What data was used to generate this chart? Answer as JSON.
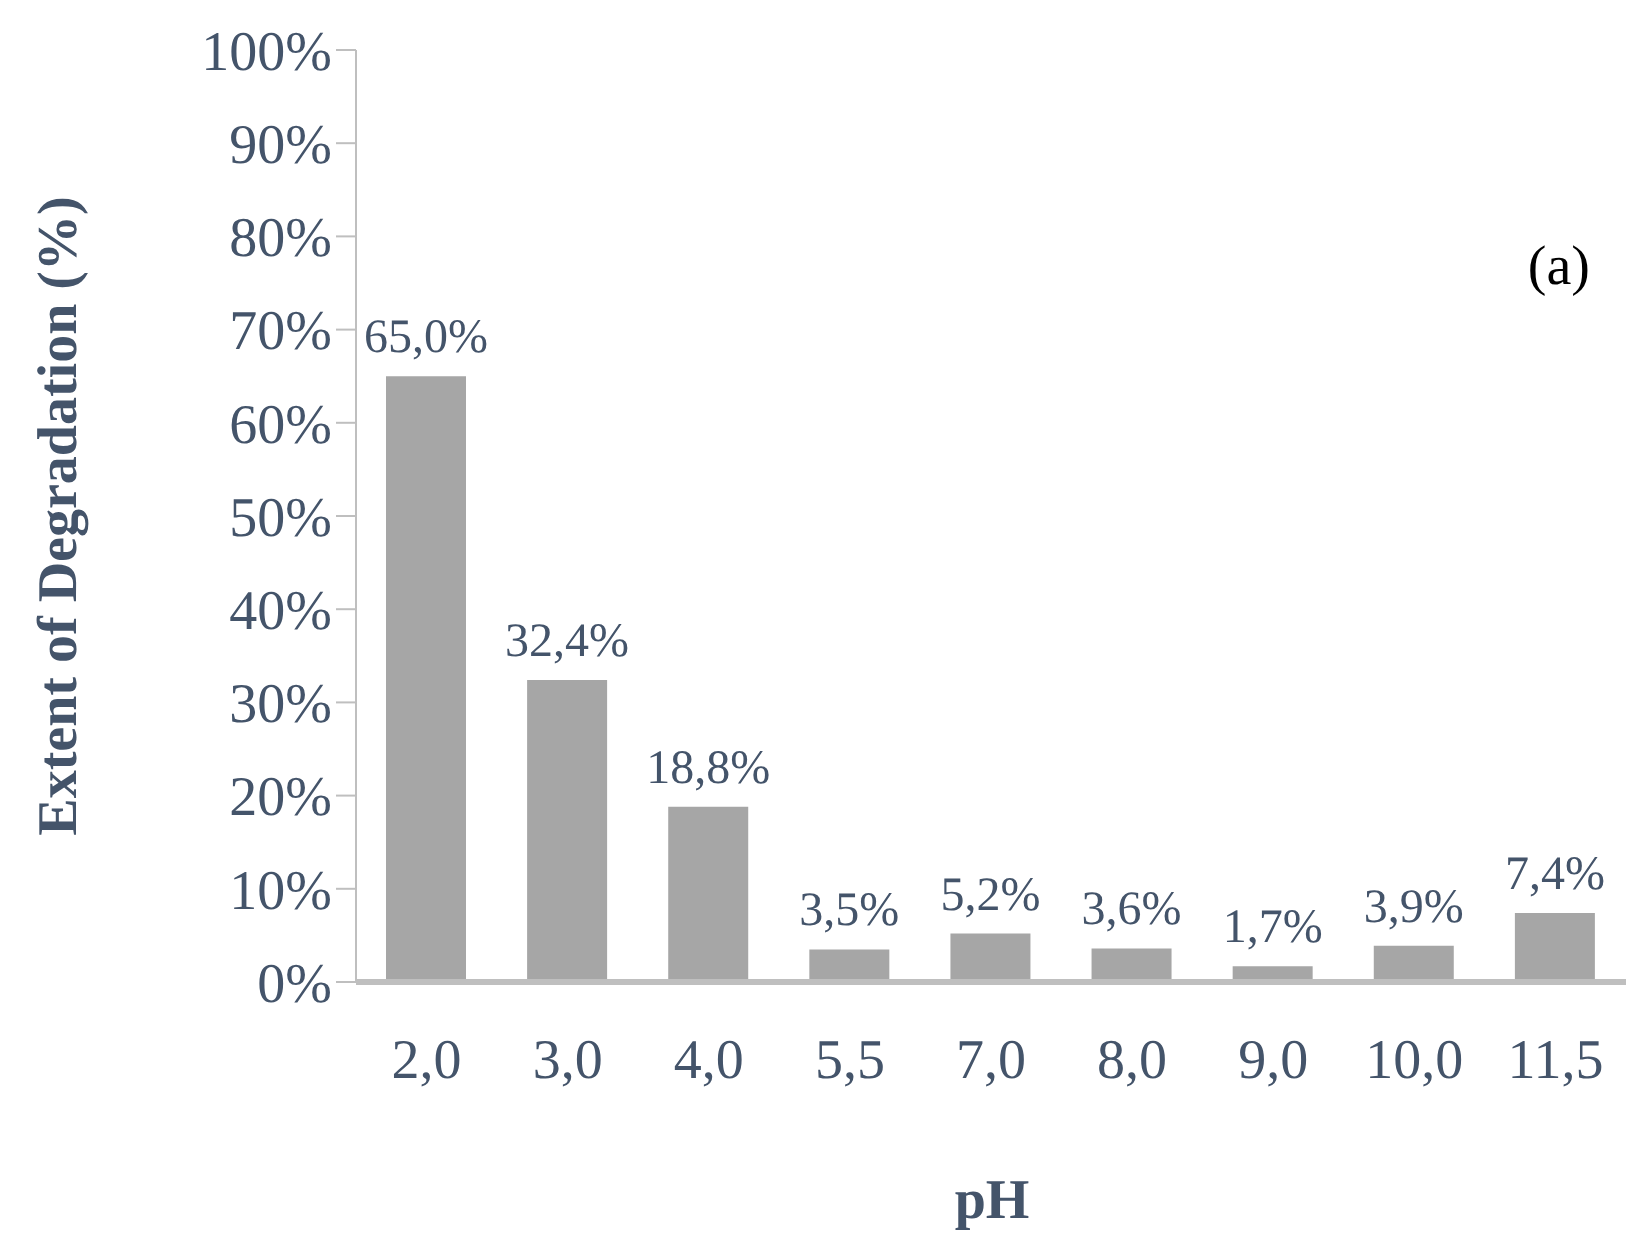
{
  "chart_data": {
    "type": "bar",
    "xlabel": "pH",
    "ylabel": "Extent of Degradation (%)",
    "annotations": [
      "(a)"
    ],
    "categories": [
      "2,0",
      "3,0",
      "4,0",
      "5,5",
      "7,0",
      "8,0",
      "9,0",
      "10,0",
      "11,5"
    ],
    "values": [
      65.0,
      32.4,
      18.8,
      3.5,
      5.2,
      3.6,
      1.7,
      3.9,
      7.4
    ],
    "value_labels": [
      "65,0%",
      "32,4%",
      "18,8%",
      "3,5%",
      "5,2%",
      "3,6%",
      "1,7%",
      "3,9%",
      "7,4%"
    ],
    "color": "#a6a6a6",
    "ylim": [
      0,
      100
    ],
    "yticks": [
      {
        "value": 0,
        "label": "0%"
      },
      {
        "value": 10,
        "label": "10%"
      },
      {
        "value": 20,
        "label": "20%"
      },
      {
        "value": 30,
        "label": "30%"
      },
      {
        "value": 40,
        "label": "40%"
      },
      {
        "value": 50,
        "label": "50%"
      },
      {
        "value": 60,
        "label": "60%"
      },
      {
        "value": 70,
        "label": "70%"
      },
      {
        "value": 80,
        "label": "80%"
      },
      {
        "value": 90,
        "label": "90%"
      },
      {
        "value": 100,
        "label": "100%"
      }
    ],
    "grid": false,
    "legend": false
  }
}
